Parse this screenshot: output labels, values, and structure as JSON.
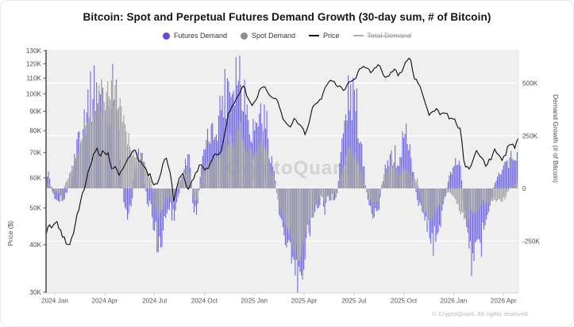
{
  "title": "Bitcoin: Spot and Perpetual Futures Demand Growth (30-day sum, # of Bitcoin)",
  "legend": [
    {
      "label": "Futures Demand",
      "swatch": "dot",
      "color": "#5a4ee4",
      "disabled": false
    },
    {
      "label": "Spot Demand",
      "swatch": "dot",
      "color": "#8e8e92",
      "disabled": false
    },
    {
      "label": "Price",
      "swatch": "line",
      "color": "#141414",
      "disabled": false
    },
    {
      "label": "Total Demand",
      "swatch": "line",
      "color": "#a9a9ae",
      "disabled": true
    }
  ],
  "watermark": "CryptoQuant",
  "footer": "© CryptoQuant. All rights reserved",
  "left_axis": {
    "title": "Price ($)",
    "scale": "log",
    "tick_labels": [
      "130K",
      "120K",
      "110K",
      "100K",
      "90K",
      "80K",
      "70K",
      "60K",
      "50K",
      "40K",
      "30K"
    ],
    "tick_values_usd_thousands": [
      130,
      120,
      110,
      100,
      90,
      80,
      70,
      60,
      50,
      40,
      30
    ]
  },
  "right_axis": {
    "title": "Demand Growth (# of Bitcoin)",
    "scale": "linear",
    "tick_labels": [
      "500K",
      "250K",
      "0",
      "-250K"
    ],
    "tick_values_btc_thousands": [
      500,
      250,
      0,
      -250
    ]
  },
  "x_axis": {
    "tick_labels": [
      "2024 Jan",
      "2024 Apr",
      "2024 Jul",
      "2024 Oct",
      "2025 Jan",
      "2025 Apr",
      "2025 Jul",
      "2025 Oct",
      "2026 Jan",
      "2026 Apr"
    ]
  },
  "chart_data": {
    "type": "combo (overlaid bars + line)",
    "sampling": "weekly values estimated from pixels, 123 points spanning plot width (mid-Dec 2023 to early May 2026)",
    "x_tick_labels": [
      "2024 Jan",
      "2024 Apr",
      "2024 Jul",
      "2024 Oct",
      "2025 Jan",
      "2025 Apr",
      "2025 Jul",
      "2025 Oct",
      "2026 Jan",
      "2026 Apr"
    ],
    "right_ylim_btc_thousands": [
      -480,
      655
    ],
    "left_ylim_usd_thousands": [
      30,
      130
    ],
    "series": [
      {
        "name": "Futures Demand",
        "type": "bar",
        "axis": "right",
        "color": "#7066e2",
        "unit": "thousand BTC (30-day sum)",
        "values": [
          100,
          40,
          -30,
          -50,
          -60,
          -40,
          30,
          80,
          220,
          300,
          340,
          420,
          460,
          490,
          440,
          420,
          380,
          430,
          590,
          150,
          -60,
          -110,
          -80,
          100,
          170,
          120,
          -50,
          -80,
          -180,
          -300,
          -220,
          -120,
          -90,
          -160,
          -60,
          70,
          120,
          160,
          -90,
          -120,
          90,
          180,
          240,
          260,
          300,
          380,
          460,
          520,
          480,
          550,
          560,
          480,
          360,
          300,
          280,
          340,
          340,
          300,
          160,
          60,
          -90,
          -150,
          -220,
          -300,
          -330,
          -420,
          -360,
          -280,
          -200,
          -140,
          -80,
          -60,
          -90,
          -40,
          -40,
          -70,
          150,
          300,
          420,
          440,
          400,
          260,
          130,
          -60,
          -100,
          -140,
          -80,
          40,
          100,
          150,
          170,
          90,
          220,
          260,
          180,
          40,
          -60,
          -120,
          -170,
          -220,
          -260,
          -180,
          -140,
          -60,
          40,
          90,
          130,
          110,
          -120,
          -310,
          -330,
          -260,
          -290,
          -180,
          -120,
          -60,
          30,
          60,
          70,
          120,
          160,
          130,
          190
        ]
      },
      {
        "name": "Spot Demand",
        "type": "bar",
        "axis": "right",
        "color": "#9c9c9e",
        "unit": "thousand BTC (30-day sum)",
        "values": [
          30,
          20,
          -10,
          -20,
          -30,
          20,
          60,
          120,
          180,
          240,
          280,
          320,
          360,
          400,
          430,
          450,
          470,
          485,
          460,
          400,
          340,
          260,
          200,
          150,
          170,
          130,
          90,
          40,
          -60,
          -140,
          -100,
          -50,
          -30,
          -80,
          20,
          60,
          70,
          90,
          -40,
          -60,
          50,
          90,
          110,
          120,
          130,
          160,
          200,
          240,
          220,
          260,
          280,
          230,
          180,
          160,
          150,
          200,
          230,
          180,
          100,
          40,
          -60,
          -120,
          -160,
          -220,
          -260,
          -310,
          -280,
          -230,
          -180,
          -120,
          -70,
          -40,
          -60,
          -30,
          -20,
          -30,
          60,
          120,
          160,
          180,
          150,
          100,
          60,
          -30,
          -60,
          -80,
          -40,
          40,
          80,
          100,
          120,
          60,
          90,
          110,
          80,
          30,
          40,
          -80,
          -130,
          -160,
          -120,
          -100,
          -80,
          -40,
          -20,
          -30,
          -60,
          -120,
          -160,
          -130,
          -100,
          -120,
          -80,
          -60,
          -80,
          -60,
          -50,
          -50,
          -60,
          -30,
          10,
          20,
          30
        ]
      },
      {
        "name": "Price",
        "type": "line",
        "axis": "left",
        "color": "#141414",
        "unit": "USD thousands",
        "values": [
          43,
          45,
          44,
          46,
          42,
          41,
          40,
          43,
          48,
          52,
          57,
          62,
          68,
          72,
          69,
          71,
          69,
          64,
          64,
          61,
          63,
          67,
          70,
          71,
          67,
          65,
          62,
          61,
          57,
          58,
          64,
          68,
          63,
          52,
          59,
          62,
          58,
          56,
          60,
          63,
          66,
          62,
          64,
          67,
          70,
          69,
          76,
          88,
          92,
          97,
          100,
          106,
          98,
          94,
          94,
          102,
          105,
          102,
          98,
          97,
          96,
          86,
          84,
          82,
          86,
          84,
          82,
          78,
          84,
          93,
          95,
          97,
          103,
          107,
          109,
          105,
          105,
          101,
          107,
          108,
          109,
          117,
          118,
          116,
          114,
          117,
          121,
          112,
          111,
          113,
          116,
          112,
          114,
          122,
          125,
          110,
          108,
          102,
          95,
          87,
          90,
          92,
          88,
          90,
          87,
          86,
          84,
          80,
          66,
          63,
          66,
          71,
          68,
          66,
          65,
          68,
          71,
          69,
          67,
          71,
          74,
          72,
          76
        ]
      },
      {
        "name": "Total Demand",
        "type": "line",
        "axis": "right",
        "hidden": true,
        "values": []
      }
    ]
  }
}
